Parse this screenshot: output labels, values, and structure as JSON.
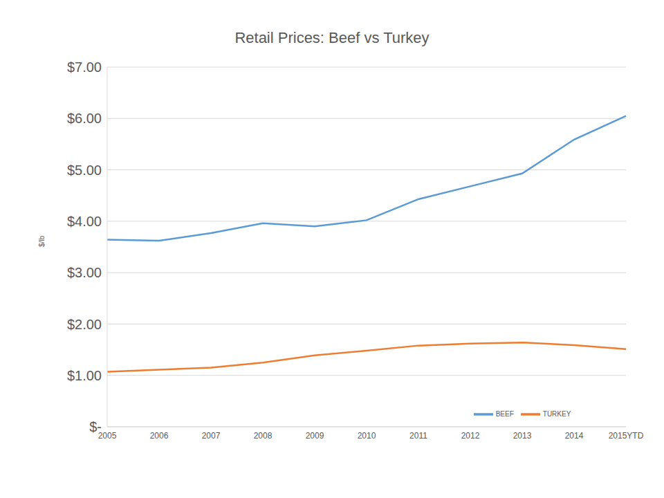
{
  "chart_data": {
    "type": "line",
    "title": "Retail Prices: Beef vs Turkey",
    "y_label": "$/lb",
    "categories": [
      "2005",
      "2006",
      "2007",
      "2008",
      "2009",
      "2010",
      "2011",
      "2012",
      "2013",
      "2014",
      "2015YTD"
    ],
    "series": [
      {
        "name": "BEEF",
        "color": "#5b9bd5",
        "values": [
          3.64,
          3.62,
          3.77,
          3.96,
          3.9,
          4.02,
          4.43,
          4.68,
          4.93,
          5.59,
          6.05
        ]
      },
      {
        "name": "TURKEY",
        "color": "#ed7d31",
        "values": [
          1.07,
          1.11,
          1.15,
          1.25,
          1.39,
          1.48,
          1.58,
          1.62,
          1.64,
          1.59,
          1.51
        ]
      }
    ],
    "ylim": [
      0,
      7
    ],
    "yticks": [
      {
        "value": 0,
        "label": "$-"
      },
      {
        "value": 1,
        "label": "$1.00"
      },
      {
        "value": 2,
        "label": "$2.00"
      },
      {
        "value": 3,
        "label": "$3.00"
      },
      {
        "value": 4,
        "label": "$4.00"
      },
      {
        "value": 5,
        "label": "$5.00"
      },
      {
        "value": 6,
        "label": "$6.00"
      },
      {
        "value": 7,
        "label": "$7.00"
      }
    ],
    "grid": true,
    "legend": "lower right"
  }
}
